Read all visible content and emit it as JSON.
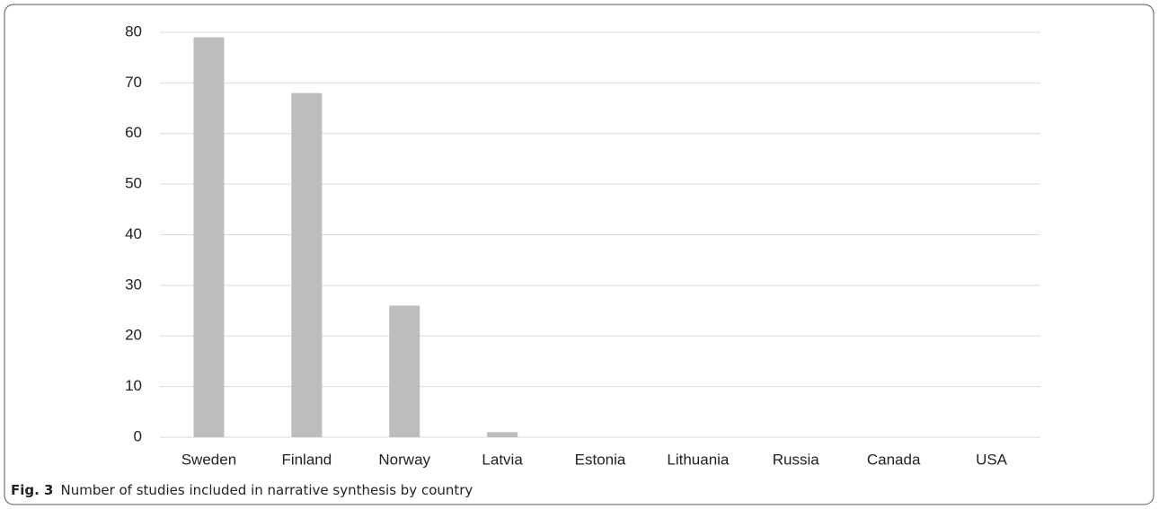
{
  "chart_data": {
    "type": "bar",
    "caption_label": "Fig. 3",
    "caption": "Number of studies included in narrative synthesis by country",
    "categories": [
      "Sweden",
      "Finland",
      "Norway",
      "Latvia",
      "Estonia",
      "Lithuania",
      "Russia",
      "Canada",
      "USA"
    ],
    "values": [
      79,
      68,
      26,
      1,
      0,
      0,
      0,
      0,
      0
    ],
    "color": "#bdbdbd",
    "ylim": [
      0,
      80
    ],
    "yticks": [
      0,
      10,
      20,
      30,
      40,
      50,
      60,
      70,
      80
    ],
    "grid": true
  }
}
